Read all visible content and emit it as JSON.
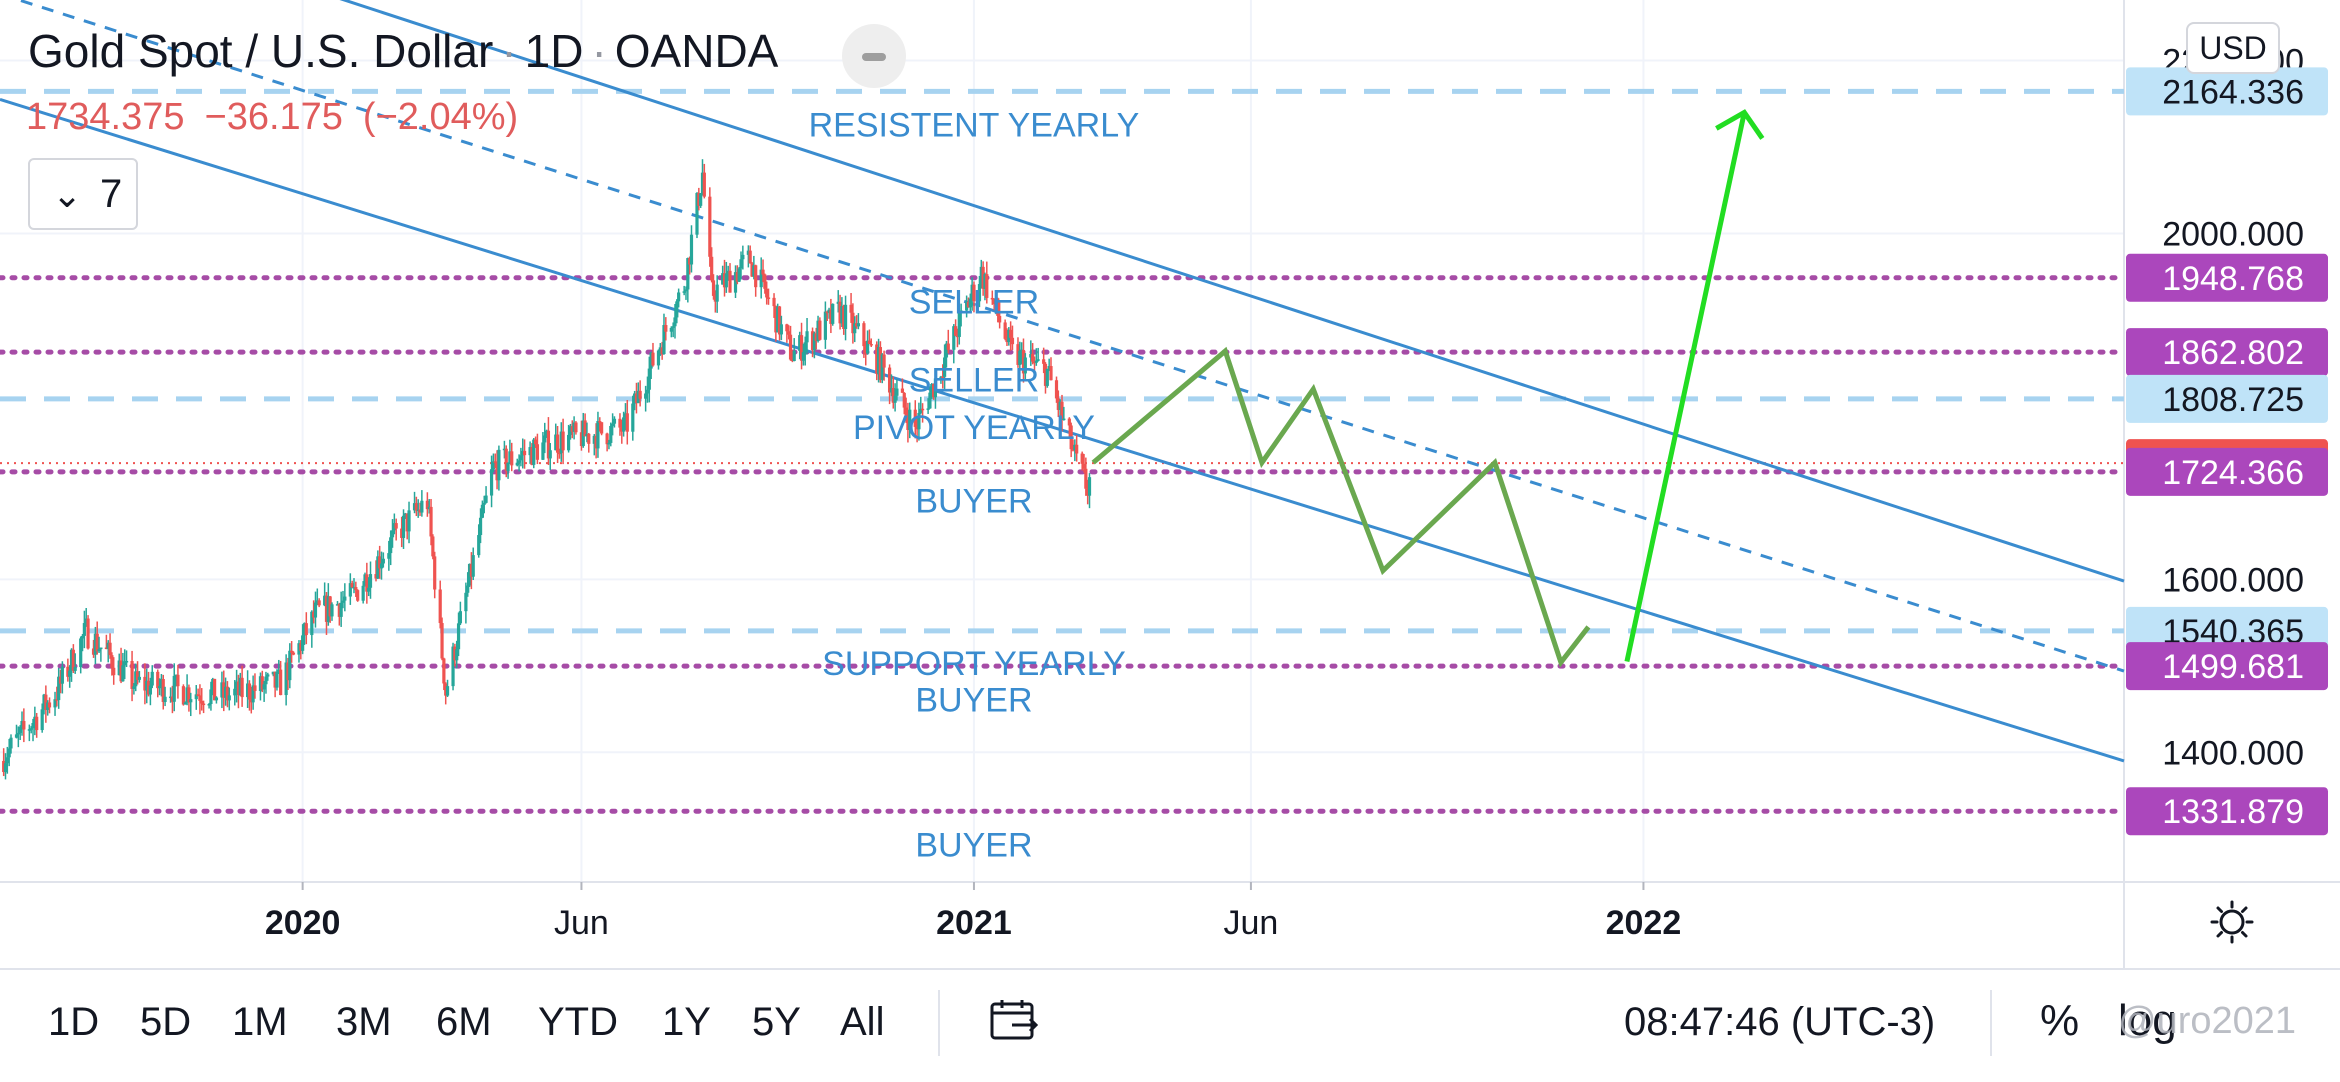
{
  "header": {
    "symbol": "Gold Spot / U.S. Dollar",
    "interval": "1D",
    "source": "OANDA",
    "separator": "·",
    "last_price": "1734.375",
    "change": "−36.175",
    "change_pct": "(−2.04%)"
  },
  "indicators": {
    "count": "7",
    "chevron": "⌄"
  },
  "currency_button": "USD",
  "colors": {
    "candle_up": "#26a69a",
    "candle_down": "#ef5350",
    "channel": "#3a8ccf",
    "dashed_level": "#a7d3f0",
    "dotted_level": "#a64ca6",
    "projection": "#6aa84f",
    "arrow": "#22dd22",
    "last_price_label": "#ef5350",
    "purple_label": "#ab47bc",
    "blue_label": "#bfe3f8"
  },
  "chart_data": {
    "type": "candlestick",
    "symbol": "Gold Spot / U.S. Dollar",
    "x_range": [
      "2019-07-20",
      "2022-09-20"
    ],
    "y_range": [
      1250,
      2270
    ],
    "y_ticks": [
      "2200.000",
      "2000.000",
      "1600.000",
      "1400.000"
    ],
    "x_ticks": [
      {
        "label": "2020",
        "date": "2020-01-01",
        "bold": true
      },
      {
        "label": "Jun",
        "date": "2020-06-01",
        "bold": false
      },
      {
        "label": "2021",
        "date": "2021-01-01",
        "bold": true
      },
      {
        "label": "Jun",
        "date": "2021-06-01",
        "bold": false
      },
      {
        "label": "2022",
        "date": "2022-01-01",
        "bold": true
      }
    ],
    "price_path": [
      [
        "2019-07-20",
        1390
      ],
      [
        "2019-08-20",
        1470
      ],
      [
        "2019-09-05",
        1540
      ],
      [
        "2019-10-01",
        1480
      ],
      [
        "2019-11-20",
        1465
      ],
      [
        "2019-12-20",
        1480
      ],
      [
        "2020-01-08",
        1560
      ],
      [
        "2020-01-28",
        1580
      ],
      [
        "2020-02-24",
        1660
      ],
      [
        "2020-03-09",
        1690
      ],
      [
        "2020-03-19",
        1470
      ],
      [
        "2020-04-14",
        1730
      ],
      [
        "2020-05-18",
        1760
      ],
      [
        "2020-06-25",
        1775
      ],
      [
        "2020-07-27",
        1940
      ],
      [
        "2020-08-06",
        2070
      ],
      [
        "2020-08-11",
        1930
      ],
      [
        "2020-09-01",
        1970
      ],
      [
        "2020-09-24",
        1860
      ],
      [
        "2020-10-20",
        1910
      ],
      [
        "2020-11-09",
        1855
      ],
      [
        "2020-11-30",
        1775
      ],
      [
        "2020-12-21",
        1880
      ],
      [
        "2021-01-05",
        1955
      ],
      [
        "2021-01-22",
        1860
      ],
      [
        "2021-02-10",
        1840
      ],
      [
        "2021-02-26",
        1735
      ],
      [
        "2021-03-04",
        1705
      ],
      [
        "2021-03-07",
        1734.375
      ]
    ],
    "last_close": 1734.375,
    "price_labels": [
      {
        "value": 2164.336,
        "text": "2164.336",
        "style": "blue"
      },
      {
        "value": 1948.768,
        "text": "1948.768",
        "style": "purple"
      },
      {
        "value": 1862.802,
        "text": "1862.802",
        "style": "purple"
      },
      {
        "value": 1808.725,
        "text": "1808.725",
        "style": "blue"
      },
      {
        "value": 1734.375,
        "text": "1734.375",
        "style": "last"
      },
      {
        "value": 1724.366,
        "text": "1724.366",
        "style": "purple"
      },
      {
        "value": 1540.365,
        "text": "1540.365",
        "style": "blue"
      },
      {
        "value": 1499.681,
        "text": "1499.681",
        "style": "purple"
      },
      {
        "value": 1331.879,
        "text": "1331.879",
        "style": "purple"
      }
    ],
    "dashed_levels": [
      2164.336,
      1808.725,
      1540.365
    ],
    "dotted_levels": [
      1948.768,
      1862.802,
      1724.366,
      1499.681,
      1331.879
    ],
    "channel": {
      "upper": [
        [
          "2019-07-20",
          2400
        ],
        [
          "2022-09-20",
          1598
        ]
      ],
      "lower": [
        [
          "2019-07-20",
          2155
        ],
        [
          "2022-09-20",
          1390
        ]
      ],
      "median": [
        [
          "2019-07-20",
          2277
        ],
        [
          "2022-09-20",
          1494
        ]
      ]
    },
    "projection_path": [
      [
        "2021-03-07",
        1735
      ],
      [
        "2021-05-18",
        1864
      ],
      [
        "2021-06-07",
        1735
      ],
      [
        "2021-07-05",
        1820
      ],
      [
        "2021-08-12",
        1610
      ],
      [
        "2021-10-12",
        1735
      ],
      [
        "2021-11-17",
        1504
      ],
      [
        "2021-12-02",
        1545
      ]
    ],
    "target_arrow": [
      [
        "2021-12-23",
        1505
      ],
      [
        "2022-02-25",
        2140
      ]
    ],
    "annotations": [
      {
        "text": "RESISTENT YEARLY",
        "date": "2021-01-01",
        "value": 2125
      },
      {
        "text": "SELLER",
        "date": "2021-01-01",
        "value": 1920
      },
      {
        "text": "SELLER",
        "date": "2021-01-01",
        "value": 1830
      },
      {
        "text": "PIVOT YEARLY",
        "date": "2021-01-01",
        "value": 1775
      },
      {
        "text": "BUYER",
        "date": "2021-01-01",
        "value": 1690
      },
      {
        "text": "SUPPORT YEARLY",
        "date": "2021-01-01",
        "value": 1502
      },
      {
        "text": "BUYER",
        "date": "2021-01-01",
        "value": 1460
      },
      {
        "text": "BUYER",
        "date": "2021-01-01",
        "value": 1292
      }
    ]
  },
  "bottom_bar": {
    "ranges": [
      "1D",
      "5D",
      "1M",
      "3M",
      "6M",
      "YTD",
      "1Y",
      "5Y",
      "All"
    ],
    "clock": "08:47:46 (UTC-3)",
    "percent": "%",
    "log": "log",
    "watermark": "@uro2021"
  }
}
